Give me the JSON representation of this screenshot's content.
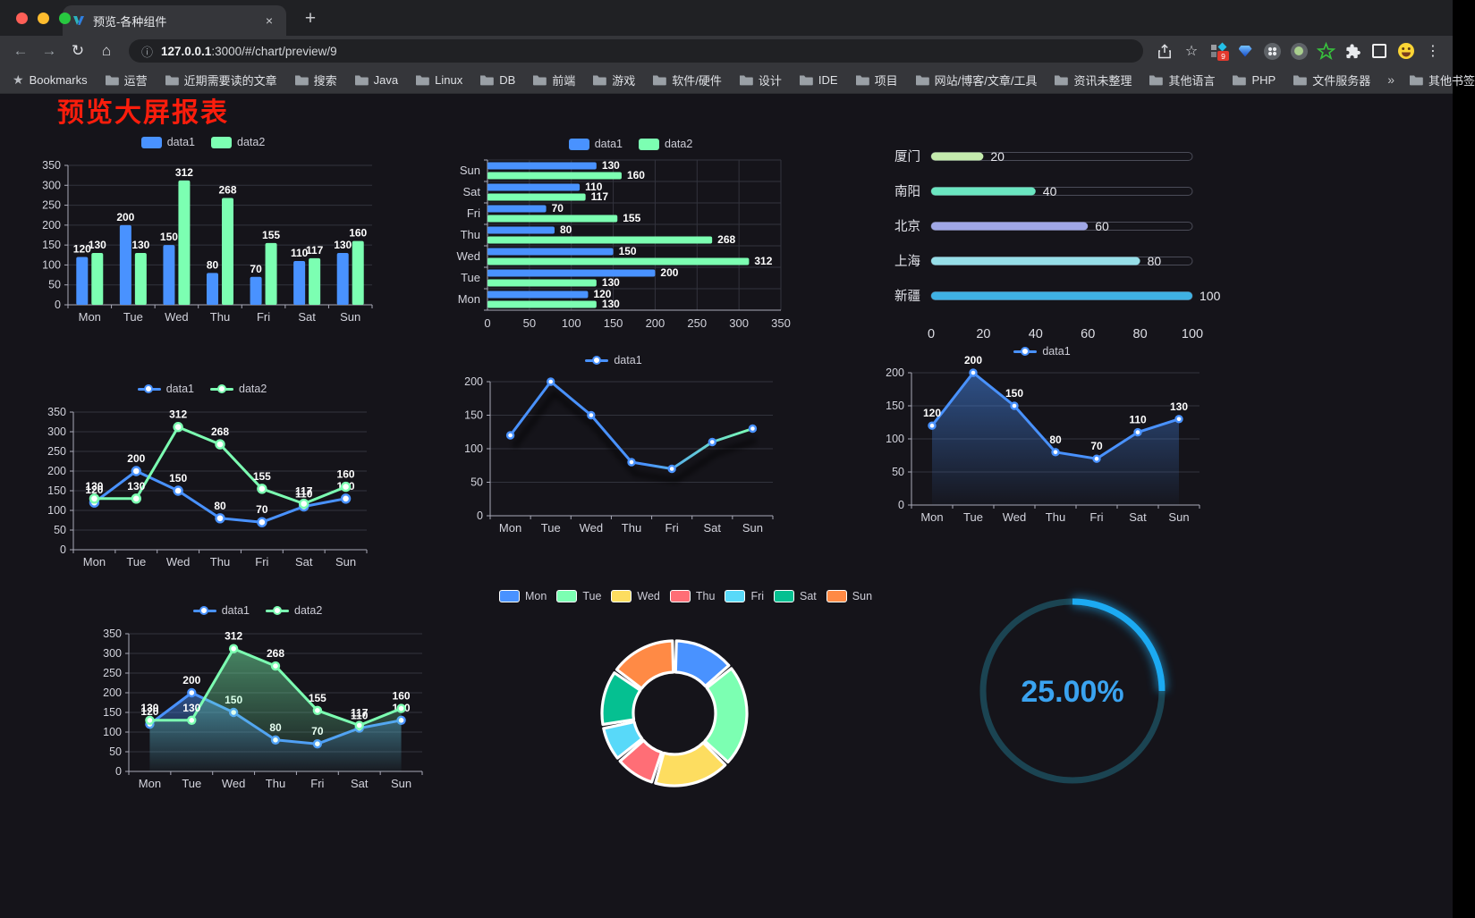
{
  "browser": {
    "tab_title": "预览-各种组件",
    "tab_close_glyph": "×",
    "new_tab_glyph": "+",
    "back_glyph": "←",
    "forward_glyph": "→",
    "reload_glyph": "↻",
    "home_glyph": "⌂",
    "info_glyph": "ⓘ",
    "url_host": "127.0.0.1",
    "url_rest": ":3000/#/chart/preview/9",
    "star_glyph": "☆",
    "menu_glyph": "⋮",
    "extension_badge": "9",
    "bookmarks_star_glyph": "★",
    "bookmarks_label": "Bookmarks",
    "bookmark_folders": [
      "运营",
      "近期需要读的文章",
      "搜索",
      "Java",
      "Linux",
      "DB",
      "前端",
      "游戏",
      "软件/硬件",
      "设计",
      "IDE",
      "项目",
      "网站/博客/文章/工具",
      "资讯未整理",
      "其他语言",
      "PHP",
      "文件服务器"
    ],
    "overflow_chevron": "»",
    "other_bookmarks": "其他书签"
  },
  "page": {
    "title": "预览大屏报表",
    "title_color": "#fb1d0c",
    "background": "#15141a"
  },
  "chart_data": [
    {
      "id": "bar-vertical",
      "type": "bar",
      "categories": [
        "Mon",
        "Tue",
        "Wed",
        "Thu",
        "Fri",
        "Sat",
        "Sun"
      ],
      "series": [
        {
          "name": "data1",
          "color": "#4992ff",
          "values": [
            120,
            200,
            150,
            80,
            70,
            110,
            130
          ]
        },
        {
          "name": "data2",
          "color": "#7cffb2",
          "values": [
            130,
            130,
            312,
            268,
            155,
            117,
            160
          ]
        }
      ],
      "ylim": [
        0,
        350
      ],
      "ytick": 50,
      "legend_position": "top",
      "grid": true,
      "value_labels": true
    },
    {
      "id": "bar-horizontal",
      "type": "bar",
      "orientation": "horizontal",
      "display_order": "Sun-top",
      "categories": [
        "Mon",
        "Tue",
        "Wed",
        "Thu",
        "Fri",
        "Sat",
        "Sun"
      ],
      "series": [
        {
          "name": "data1",
          "color": "#4992ff",
          "values": [
            120,
            200,
            150,
            80,
            70,
            110,
            130
          ]
        },
        {
          "name": "data2",
          "color": "#7cffb2",
          "values": [
            130,
            130,
            312,
            268,
            155,
            117,
            160
          ]
        }
      ],
      "xlim": [
        0,
        350
      ],
      "xtick": 50,
      "legend_position": "top",
      "grid": true,
      "value_labels": true
    },
    {
      "id": "progress-bars",
      "type": "bar",
      "subtype": "progress",
      "categories": [
        "厦门",
        "南阳",
        "北京",
        "上海",
        "新疆"
      ],
      "values": [
        20,
        40,
        60,
        80,
        100
      ],
      "colors": [
        "#c4ebad",
        "#6be6c1",
        "#a0a7e6",
        "#96dee8",
        "#3fb1e3"
      ],
      "xlim": [
        0,
        100
      ],
      "xticks": [
        0,
        20,
        40,
        60,
        80,
        100
      ],
      "value_labels": true
    },
    {
      "id": "line-two-series",
      "type": "line",
      "categories": [
        "Mon",
        "Tue",
        "Wed",
        "Thu",
        "Fri",
        "Sat",
        "Sun"
      ],
      "series": [
        {
          "name": "data1",
          "color": "#4992ff",
          "values": [
            120,
            200,
            150,
            80,
            70,
            110,
            130
          ]
        },
        {
          "name": "data2",
          "color": "#7cffb2",
          "values": [
            130,
            130,
            312,
            268,
            155,
            117,
            160
          ]
        }
      ],
      "ylim": [
        0,
        350
      ],
      "ytick": 50,
      "legend_position": "top",
      "value_labels": true,
      "markers": true
    },
    {
      "id": "line-gradient",
      "type": "line",
      "categories": [
        "Mon",
        "Tue",
        "Wed",
        "Thu",
        "Fri",
        "Sat",
        "Sun"
      ],
      "series": [
        {
          "name": "data1",
          "color_gradient": [
            "#4992ff",
            "#7cffb2"
          ],
          "values": [
            120,
            200,
            150,
            80,
            70,
            110,
            130
          ]
        }
      ],
      "ylim": [
        0,
        200
      ],
      "ytick": 50,
      "legend_position": "top",
      "value_labels": false,
      "markers": true,
      "shadow": true
    },
    {
      "id": "area-single",
      "type": "area",
      "categories": [
        "Mon",
        "Tue",
        "Wed",
        "Thu",
        "Fri",
        "Sat",
        "Sun"
      ],
      "series": [
        {
          "name": "data1",
          "color": "#4992ff",
          "values": [
            120,
            200,
            150,
            80,
            70,
            110,
            130
          ]
        }
      ],
      "ylim": [
        0,
        200
      ],
      "ytick": 50,
      "legend_position": "top",
      "value_labels": true,
      "markers": true
    },
    {
      "id": "area-two-series",
      "type": "area",
      "categories": [
        "Mon",
        "Tue",
        "Wed",
        "Thu",
        "Fri",
        "Sat",
        "Sun"
      ],
      "series": [
        {
          "name": "data1",
          "color": "#4992ff",
          "values": [
            120,
            200,
            150,
            80,
            70,
            110,
            130
          ]
        },
        {
          "name": "data2",
          "color": "#7cffb2",
          "values": [
            130,
            130,
            312,
            268,
            155,
            117,
            160
          ]
        }
      ],
      "ylim": [
        0,
        350
      ],
      "ytick": 50,
      "legend_position": "top",
      "value_labels": true,
      "markers": true
    },
    {
      "id": "donut",
      "type": "pie",
      "inner_radius_ratio": 0.57,
      "labels": [
        "Mon",
        "Tue",
        "Wed",
        "Thu",
        "Fri",
        "Sat",
        "Sun"
      ],
      "values": [
        120,
        200,
        150,
        80,
        70,
        110,
        130
      ],
      "colors": [
        "#4992ff",
        "#7cffb2",
        "#fddd60",
        "#ff6e76",
        "#58d9f9",
        "#05c091",
        "#ff8a45"
      ],
      "legend_position": "top"
    },
    {
      "id": "gauge",
      "type": "gauge",
      "value": 25,
      "max": 100,
      "label": "25.00%",
      "progress_color": "#1caaf2",
      "track_color": "#1b4452",
      "text_color": "#3aa3f0"
    }
  ]
}
